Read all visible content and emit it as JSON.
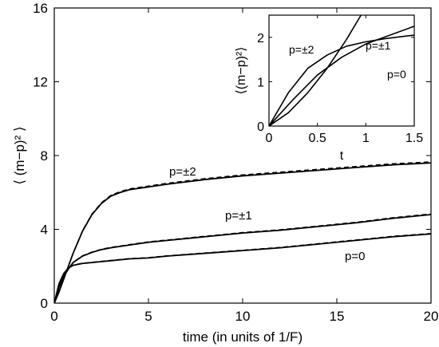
{
  "chart_data": [
    {
      "type": "line",
      "xlabel": "time (in units of 1/F)",
      "ylabel": "⟨ (m−p)² ⟩",
      "xlim": [
        0,
        20
      ],
      "ylim": [
        0,
        16
      ],
      "xticks": [
        "0",
        "5",
        "10",
        "15",
        "20"
      ],
      "yticks": [
        "0",
        "4",
        "8",
        "12",
        "16"
      ],
      "grid": false,
      "series": [
        {
          "name": "p=±2",
          "x": [
            0,
            0.25,
            0.5,
            0.75,
            1,
            1.25,
            1.5,
            2,
            2.5,
            3,
            3.5,
            4,
            5,
            6,
            8,
            10,
            12,
            14,
            16,
            18,
            20
          ],
          "y": [
            0,
            0.6,
            1.3,
            2.0,
            2.7,
            3.3,
            3.9,
            4.8,
            5.4,
            5.8,
            6.0,
            6.15,
            6.3,
            6.45,
            6.7,
            6.9,
            7.05,
            7.2,
            7.35,
            7.5,
            7.6
          ],
          "style": "solid with dashed overlay"
        },
        {
          "name": "p=±1",
          "x": [
            0,
            0.25,
            0.5,
            0.75,
            1,
            1.5,
            2,
            2.5,
            3,
            4,
            5,
            6,
            8,
            10,
            12,
            14,
            16,
            18,
            20
          ],
          "y": [
            0,
            0.85,
            1.45,
            1.85,
            2.2,
            2.55,
            2.75,
            2.9,
            3.0,
            3.15,
            3.3,
            3.4,
            3.6,
            3.8,
            3.95,
            4.15,
            4.35,
            4.6,
            4.8
          ],
          "style": "solid with dashed overlay"
        },
        {
          "name": "p=0",
          "x": [
            0,
            0.25,
            0.5,
            0.75,
            1,
            1.5,
            2,
            3,
            4,
            5,
            6,
            8,
            10,
            12,
            14,
            16,
            18,
            20
          ],
          "y": [
            0,
            1.05,
            1.6,
            1.9,
            2.05,
            2.15,
            2.2,
            2.3,
            2.4,
            2.45,
            2.55,
            2.7,
            2.85,
            3.0,
            3.2,
            3.4,
            3.6,
            3.75
          ],
          "style": "solid with dashed overlay"
        }
      ]
    },
    {
      "type": "line",
      "inset": true,
      "xlabel": "t",
      "ylabel": "⟨(m−p)²⟩",
      "xlim": [
        0,
        1.5
      ],
      "ylim": [
        0,
        2.5
      ],
      "xticks": [
        "0",
        "0.5",
        "1",
        "1.5"
      ],
      "yticks": [
        "0",
        "1",
        "2"
      ],
      "grid": false,
      "series": [
        {
          "name": "p=±2",
          "x": [
            0,
            0.2,
            0.4,
            0.6,
            0.8,
            0.95
          ],
          "y": [
            0,
            0.3,
            0.75,
            1.3,
            1.95,
            2.5
          ]
        },
        {
          "name": "p=±1",
          "x": [
            0,
            0.25,
            0.5,
            0.75,
            1.0,
            1.25,
            1.5
          ],
          "y": [
            0,
            0.6,
            1.15,
            1.55,
            1.85,
            2.05,
            2.25
          ]
        },
        {
          "name": "p=0",
          "x": [
            0,
            0.2,
            0.4,
            0.6,
            0.8,
            1.0,
            1.2,
            1.5
          ],
          "y": [
            0,
            0.75,
            1.3,
            1.6,
            1.8,
            1.9,
            1.97,
            2.05
          ]
        }
      ]
    }
  ]
}
